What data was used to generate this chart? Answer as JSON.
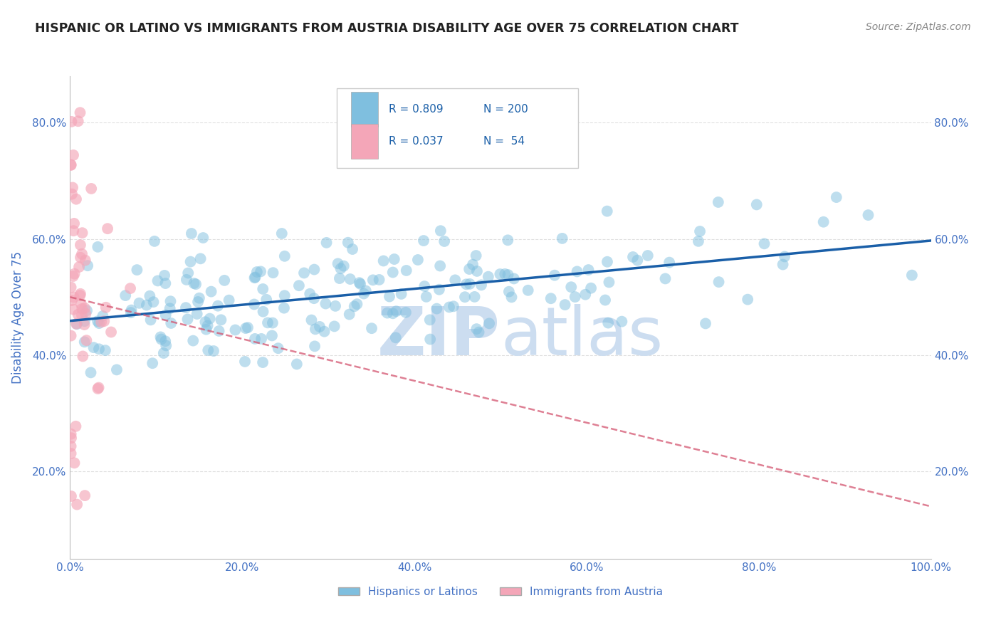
{
  "title": "HISPANIC OR LATINO VS IMMIGRANTS FROM AUSTRIA DISABILITY AGE OVER 75 CORRELATION CHART",
  "source": "Source: ZipAtlas.com",
  "ylabel": "Disability Age Over 75",
  "legend_label1": "Hispanics or Latinos",
  "legend_label2": "Immigrants from Austria",
  "R1": 0.809,
  "N1": 200,
  "R2": 0.037,
  "N2": 54,
  "xlim": [
    0.0,
    1.0
  ],
  "ylim": [
    0.05,
    0.88
  ],
  "xticks": [
    0.0,
    0.2,
    0.4,
    0.6,
    0.8,
    1.0
  ],
  "yticks": [
    0.2,
    0.4,
    0.6,
    0.8
  ],
  "xticklabels": [
    "0.0%",
    "20.0%",
    "40.0%",
    "60.0%",
    "80.0%",
    "100.0%"
  ],
  "yticklabels": [
    "20.0%",
    "40.0%",
    "60.0%",
    "80.0%"
  ],
  "blue_color": "#7fbfdf",
  "blue_line_color": "#1a5fa8",
  "pink_color": "#f4a6b8",
  "pink_line_color": "#d45570",
  "watermark_zip": "ZIP",
  "watermark_atlas": "atlas",
  "watermark_color": "#ccddf0",
  "background_color": "#ffffff",
  "title_color": "#222222",
  "tick_color": "#4472c4",
  "grid_color": "#cccccc",
  "seed": 42
}
